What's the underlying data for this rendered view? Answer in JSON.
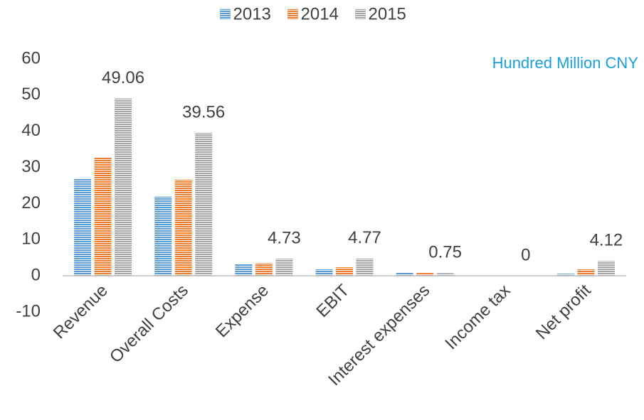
{
  "chart_data": {
    "type": "bar",
    "unit_label": "Hundred Million CNY",
    "categories": [
      "Revenue",
      "Overall Costs",
      "Expense",
      "EBIT",
      "Interest expenses",
      "Income tax",
      "Net profit"
    ],
    "series": [
      {
        "name": "2013",
        "color": "#5b9bd5",
        "values": [
          27.0,
          21.9,
          3.3,
          1.8,
          1.0,
          0,
          0.6
        ]
      },
      {
        "name": "2014",
        "color": "#ed7d31",
        "values": [
          32.7,
          26.6,
          3.5,
          2.4,
          0.8,
          0,
          1.8
        ]
      },
      {
        "name": "2015",
        "color": "#a5a5a5",
        "values": [
          49.06,
          39.56,
          4.73,
          4.77,
          0.75,
          0,
          4.12
        ],
        "data_labels": true
      }
    ],
    "ylim": [
      -10,
      60
    ],
    "yticks": [
      -10,
      0,
      10,
      20,
      30,
      40,
      50,
      60
    ],
    "legend": "top",
    "grid": false
  }
}
